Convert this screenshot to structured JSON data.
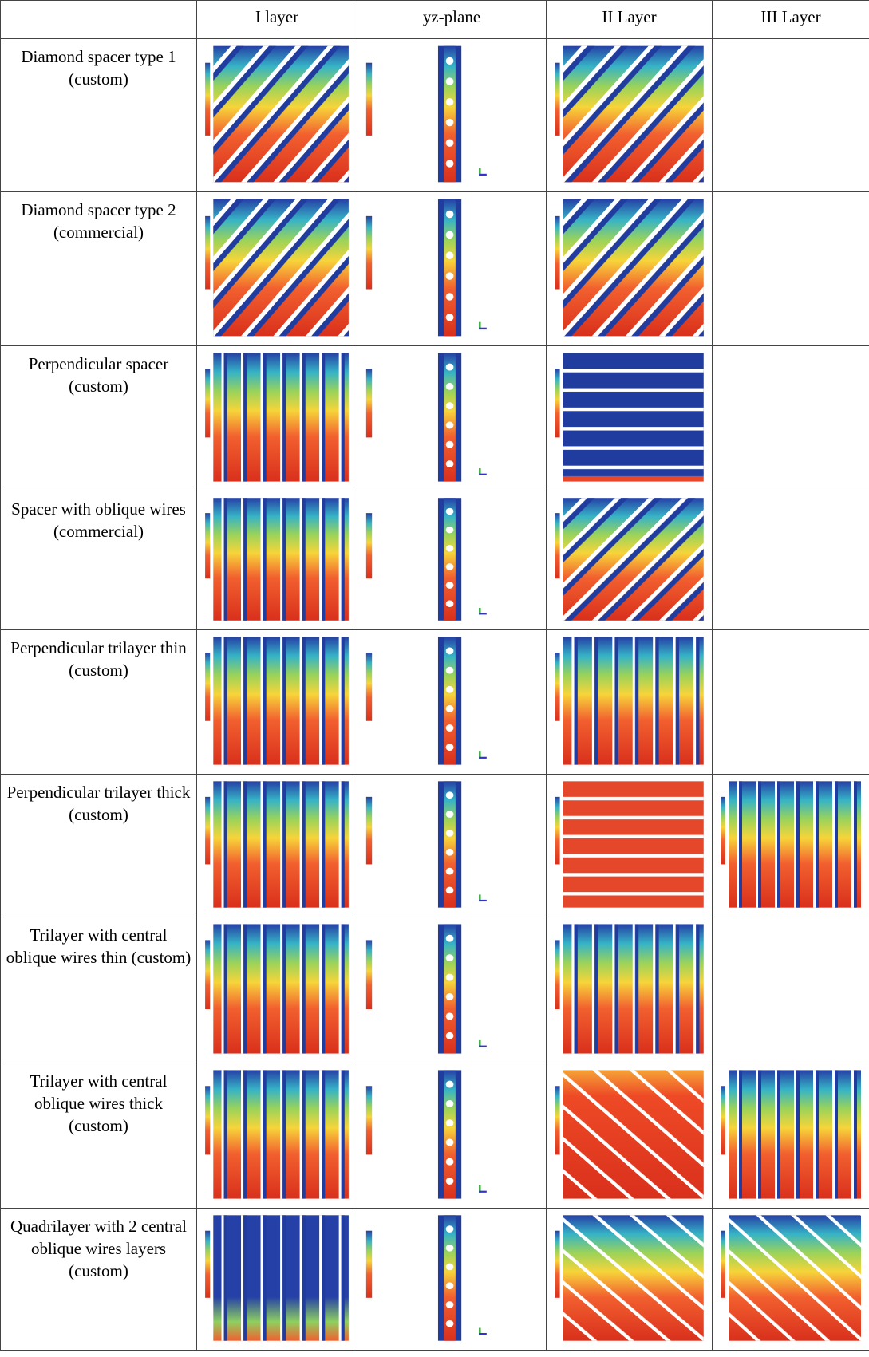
{
  "table": {
    "header": [
      "",
      "I layer",
      "yz-plane",
      "II Layer",
      "III Layer"
    ],
    "rows": [
      "Diamond spacer type 1 (custom)",
      "Diamond spacer type 2 (commercial)",
      "Perpendicular spacer (custom)",
      "Spacer with oblique wires (commercial)",
      "Perpendicular trilayer thin (custom)",
      "Perpendicular trilayer thick (custom)",
      "Trilayer with central oblique wires thin (custom)",
      "Trilayer with central oblique wires thick (custom)",
      "Quadrilayer with 2 central oblique wires layers (custom)"
    ]
  }
}
